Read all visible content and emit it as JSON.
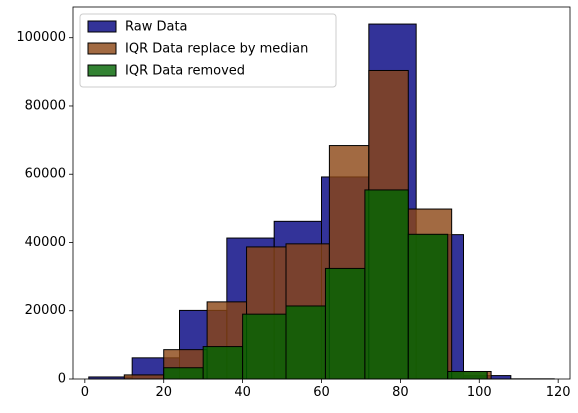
{
  "chart_data": {
    "type": "histogram",
    "title": "",
    "xlabel": "",
    "ylabel": "",
    "xlim": [
      -3,
      123
    ],
    "ylim": [
      0,
      109000
    ],
    "xticks": [
      0,
      20,
      40,
      60,
      80,
      100,
      120
    ],
    "yticks": [
      0,
      20000,
      40000,
      60000,
      80000,
      100000
    ],
    "grid": false,
    "legend_position": "upper left",
    "series": [
      {
        "name": "Raw Data",
        "color": "#000080",
        "opacity": 0.8,
        "bins": [
          {
            "x0": 1,
            "x1": 12,
            "count": 600
          },
          {
            "x0": 12,
            "x1": 24,
            "count": 6200
          },
          {
            "x0": 24,
            "x1": 36,
            "count": 20100
          },
          {
            "x0": 36,
            "x1": 48,
            "count": 41300
          },
          {
            "x0": 48,
            "x1": 60,
            "count": 46200
          },
          {
            "x0": 60,
            "x1": 72,
            "count": 59200
          },
          {
            "x0": 72,
            "x1": 84,
            "count": 104000
          },
          {
            "x0": 84,
            "x1": 96,
            "count": 42300
          },
          {
            "x0": 96,
            "x1": 108,
            "count": 1000
          },
          {
            "x0": 108,
            "x1": 119,
            "count": 50
          }
        ]
      },
      {
        "name": "IQR Data replace by median",
        "color": "#8B4513",
        "opacity": 0.8,
        "bins": [
          {
            "x0": 10,
            "x1": 20,
            "count": 1200
          },
          {
            "x0": 20,
            "x1": 31,
            "count": 8600
          },
          {
            "x0": 31,
            "x1": 41,
            "count": 22600
          },
          {
            "x0": 41,
            "x1": 51,
            "count": 38700
          },
          {
            "x0": 51,
            "x1": 62,
            "count": 39600
          },
          {
            "x0": 62,
            "x1": 72,
            "count": 68400
          },
          {
            "x0": 72,
            "x1": 82,
            "count": 90400
          },
          {
            "x0": 82,
            "x1": 93,
            "count": 49800
          },
          {
            "x0": 93,
            "x1": 103,
            "count": 2200
          }
        ]
      },
      {
        "name": "IQR Data removed",
        "color": "#006400",
        "opacity": 0.8,
        "bins": [
          {
            "x0": 20,
            "x1": 30,
            "count": 3300
          },
          {
            "x0": 30,
            "x1": 40,
            "count": 9500
          },
          {
            "x0": 40,
            "x1": 51,
            "count": 19000
          },
          {
            "x0": 51,
            "x1": 61,
            "count": 21400
          },
          {
            "x0": 61,
            "x1": 71,
            "count": 32400
          },
          {
            "x0": 71,
            "x1": 82,
            "count": 55400
          },
          {
            "x0": 82,
            "x1": 92,
            "count": 42400
          },
          {
            "x0": 92,
            "x1": 102,
            "count": 2200
          }
        ]
      }
    ]
  }
}
